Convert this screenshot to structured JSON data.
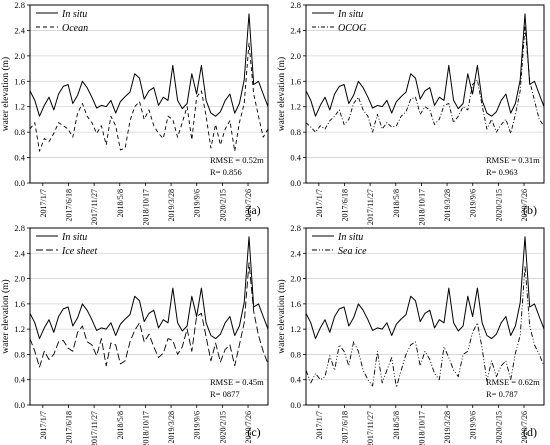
{
  "chart_data": [
    {
      "type": "line",
      "panel_label": "(a)",
      "ylabel": "water elevation (m)",
      "ylim": [
        0,
        2.8
      ],
      "yticks": [
        "0.0",
        "0.4",
        "0.8",
        "1.2",
        "1.6",
        "2.0",
        "2.4",
        "2.8"
      ],
      "xticks": [
        "2017/1/7",
        "2017/6/18",
        "2017/11/27",
        "2018/5/8",
        "2018/10/17",
        "2019/3/28",
        "2019/9/6",
        "2020/2/15",
        "2020/7/26"
      ],
      "grid": true,
      "legend": "top-left",
      "stats": [
        "RMSE = 0.52m",
        "R= 0.856"
      ],
      "series": [
        {
          "name": "In situ",
          "style": "solid",
          "values": [
            1.45,
            1.3,
            1.05,
            1.22,
            1.35,
            1.15,
            1.4,
            1.52,
            1.55,
            1.25,
            1.38,
            1.6,
            1.5,
            1.35,
            1.18,
            1.22,
            1.2,
            1.3,
            1.1,
            1.28,
            1.36,
            1.43,
            1.72,
            1.65,
            1.32,
            1.45,
            1.5,
            1.22,
            1.35,
            1.3,
            1.85,
            1.3,
            1.17,
            1.25,
            1.72,
            1.4,
            1.85,
            1.3,
            1.1,
            1.05,
            1.12,
            1.3,
            1.4,
            1.1,
            1.25,
            1.62,
            2.66,
            1.55,
            1.6,
            1.4,
            1.2
          ]
        },
        {
          "name": "Ocean",
          "style": "dashed",
          "values": [
            0.85,
            0.95,
            0.5,
            0.7,
            0.65,
            0.78,
            0.95,
            0.9,
            0.85,
            0.72,
            1.1,
            1.25,
            1.05,
            0.95,
            0.78,
            0.9,
            0.6,
            1.05,
            0.9,
            0.52,
            0.55,
            0.98,
            1.2,
            1.28,
            1.0,
            1.15,
            0.9,
            0.78,
            0.7,
            1.05,
            1.0,
            0.72,
            0.95,
            1.2,
            0.68,
            1.35,
            1.45,
            1.05,
            0.55,
            0.92,
            0.6,
            0.85,
            0.98,
            0.5,
            0.95,
            1.25,
            2.2,
            1.4,
            1.05,
            0.72,
            0.85
          ]
        }
      ]
    },
    {
      "type": "line",
      "panel_label": "(b)",
      "ylabel": "water elevation (m)",
      "ylim": [
        0,
        2.8
      ],
      "yticks": [
        "0.0",
        "0.4",
        "0.8",
        "1.2",
        "1.6",
        "2.0",
        "2.4",
        "2.8"
      ],
      "xticks": [
        "2017/1/7",
        "2017/6/18",
        "2017/11/27",
        "2018/5/8",
        "2018/10/17",
        "2019/3/28",
        "2019/9/6",
        "2020/2/15",
        "2020/7/26"
      ],
      "grid": true,
      "legend": "top-left",
      "stats": [
        "RMSE = 0.31m",
        "R= 0.963"
      ],
      "series": [
        {
          "name": "In situ",
          "style": "solid",
          "values": [
            1.45,
            1.3,
            1.05,
            1.22,
            1.35,
            1.15,
            1.4,
            1.52,
            1.55,
            1.25,
            1.38,
            1.6,
            1.5,
            1.35,
            1.18,
            1.22,
            1.2,
            1.3,
            1.1,
            1.28,
            1.36,
            1.43,
            1.72,
            1.65,
            1.32,
            1.45,
            1.5,
            1.22,
            1.35,
            1.3,
            1.85,
            1.3,
            1.17,
            1.25,
            1.72,
            1.4,
            1.85,
            1.3,
            1.1,
            1.05,
            1.12,
            1.3,
            1.4,
            1.1,
            1.25,
            1.62,
            2.66,
            1.55,
            1.6,
            1.4,
            1.2
          ]
        },
        {
          "name": "OCOG",
          "style": "dashdot",
          "values": [
            0.95,
            0.88,
            0.8,
            0.9,
            0.85,
            0.98,
            1.05,
            1.15,
            0.92,
            1.0,
            1.25,
            1.35,
            1.15,
            1.05,
            0.8,
            1.08,
            0.85,
            0.95,
            0.88,
            0.9,
            1.05,
            1.12,
            1.32,
            1.35,
            1.08,
            1.2,
            1.15,
            0.92,
            1.0,
            1.22,
            1.25,
            0.95,
            1.05,
            1.2,
            1.15,
            1.55,
            1.62,
            1.22,
            0.85,
            1.0,
            0.8,
            0.92,
            1.0,
            0.78,
            1.08,
            1.45,
            2.45,
            1.6,
            1.3,
            1.0,
            0.9
          ]
        }
      ]
    },
    {
      "type": "line",
      "panel_label": "(c)",
      "ylabel": "water elevation (m)",
      "ylim": [
        0,
        2.8
      ],
      "yticks": [
        "0.0",
        "0.4",
        "0.8",
        "1.2",
        "1.6",
        "2.0",
        "2.4",
        "2.8"
      ],
      "xticks": [
        "2017/1/7",
        "2017/6/18",
        "2017/11/27",
        "2018/5/8",
        "2018/10/17",
        "2019/3/28",
        "2019/9/6",
        "2020/2/15",
        "2020/7/26"
      ],
      "grid": true,
      "legend": "top-left",
      "stats": [
        "RMSE = 0.45m",
        "R= 0877"
      ],
      "series": [
        {
          "name": "In situ",
          "style": "solid",
          "values": [
            1.45,
            1.3,
            1.05,
            1.22,
            1.35,
            1.15,
            1.4,
            1.52,
            1.55,
            1.25,
            1.38,
            1.6,
            1.5,
            1.35,
            1.18,
            1.22,
            1.2,
            1.3,
            1.1,
            1.28,
            1.36,
            1.43,
            1.72,
            1.65,
            1.32,
            1.45,
            1.5,
            1.22,
            1.35,
            1.3,
            1.85,
            1.3,
            1.17,
            1.25,
            1.72,
            1.4,
            1.85,
            1.3,
            1.1,
            1.05,
            1.12,
            1.3,
            1.4,
            1.1,
            1.25,
            1.62,
            2.66,
            1.55,
            1.6,
            1.4,
            1.2
          ]
        },
        {
          "name": "Ice sheet",
          "style": "longdash",
          "values": [
            1.05,
            0.85,
            0.6,
            0.85,
            0.72,
            0.8,
            1.0,
            1.02,
            0.9,
            0.85,
            1.15,
            1.25,
            1.0,
            0.95,
            0.78,
            1.05,
            0.62,
            0.98,
            0.95,
            0.65,
            0.7,
            1.0,
            1.18,
            1.3,
            1.0,
            1.12,
            0.92,
            0.75,
            0.82,
            1.05,
            1.02,
            0.8,
            0.92,
            1.2,
            0.85,
            1.4,
            1.45,
            1.08,
            0.7,
            0.98,
            0.68,
            0.88,
            0.95,
            0.62,
            0.95,
            1.3,
            2.25,
            1.48,
            1.1,
            0.85,
            0.65
          ]
        }
      ]
    },
    {
      "type": "line",
      "panel_label": "(d)",
      "ylabel": "water elevation (m)",
      "ylim": [
        0,
        2.8
      ],
      "yticks": [
        "0.0",
        "0.4",
        "0.8",
        "1.2",
        "1.6",
        "2.0",
        "2.4",
        "2.8"
      ],
      "xticks": [
        "2017/1/7",
        "2017/6/18",
        "2017/11/27",
        "2018/5/8",
        "2018/10/17",
        "2019/3/28",
        "2019/9/6",
        "2020/2/15",
        "2020/7/26"
      ],
      "grid": true,
      "legend": "top-left",
      "stats": [
        "RMSE = 0.62m",
        "R= 0.787"
      ],
      "series": [
        {
          "name": "In situ",
          "style": "solid",
          "values": [
            1.45,
            1.3,
            1.05,
            1.22,
            1.35,
            1.15,
            1.4,
            1.52,
            1.55,
            1.25,
            1.38,
            1.6,
            1.5,
            1.35,
            1.18,
            1.22,
            1.2,
            1.3,
            1.1,
            1.28,
            1.36,
            1.43,
            1.72,
            1.65,
            1.32,
            1.45,
            1.5,
            1.22,
            1.35,
            1.3,
            1.85,
            1.3,
            1.17,
            1.25,
            1.72,
            1.4,
            1.85,
            1.3,
            1.1,
            1.05,
            1.12,
            1.3,
            1.4,
            1.1,
            1.25,
            1.62,
            2.66,
            1.55,
            1.6,
            1.4,
            1.2
          ]
        },
        {
          "name": "Sea ice",
          "style": "dashdotdot",
          "values": [
            0.55,
            0.35,
            0.5,
            0.4,
            0.45,
            0.78,
            0.55,
            0.95,
            0.85,
            0.62,
            1.0,
            0.85,
            0.55,
            0.4,
            0.3,
            0.85,
            0.35,
            0.55,
            0.75,
            0.28,
            0.55,
            0.8,
            0.95,
            1.0,
            0.62,
            0.85,
            0.72,
            0.5,
            0.4,
            0.92,
            0.75,
            0.55,
            0.45,
            0.8,
            0.85,
            1.15,
            1.3,
            0.9,
            0.38,
            0.7,
            0.45,
            0.62,
            0.7,
            0.4,
            0.82,
            1.1,
            2.2,
            1.25,
            0.95,
            0.8,
            0.62
          ]
        }
      ]
    }
  ]
}
